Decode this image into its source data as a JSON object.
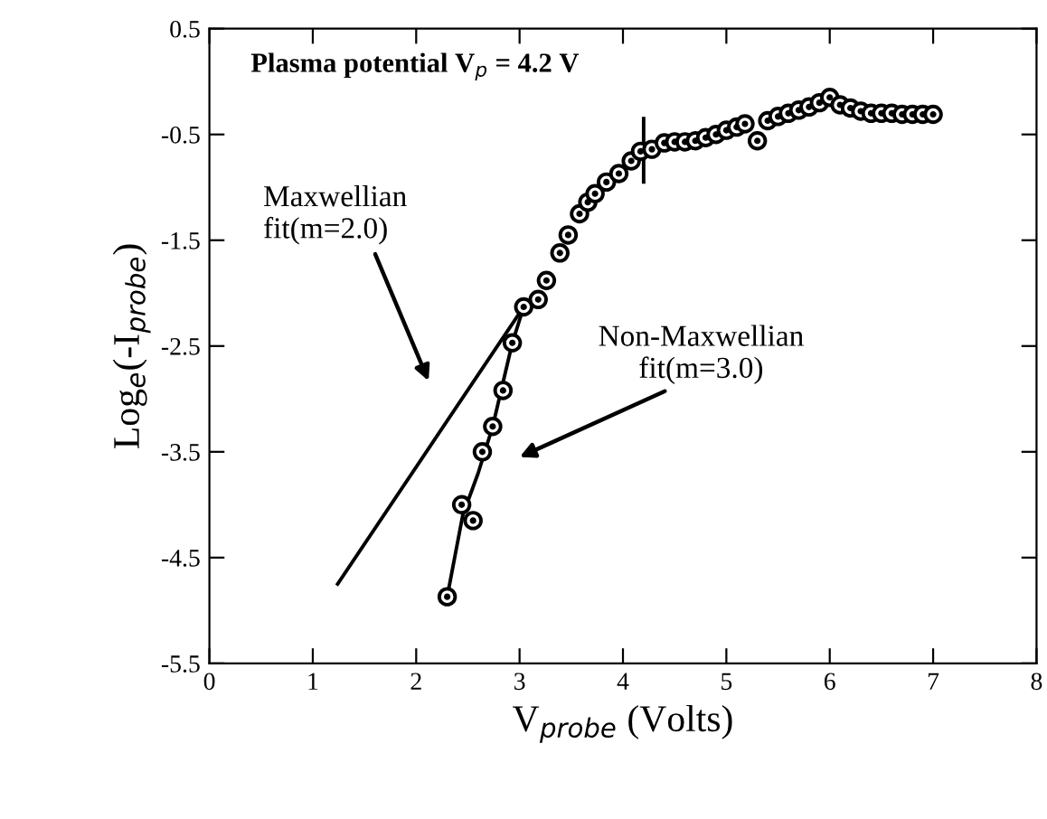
{
  "chart_data": {
    "type": "scatter",
    "xlabel": "V$_{probe}$ (Volts)",
    "ylabel": "Log$_{e}$(-I$_{probe}$)",
    "xlim": [
      0,
      8
    ],
    "ylim": [
      -5.5,
      0.5
    ],
    "xticks": [
      0,
      1,
      2,
      3,
      4,
      5,
      6,
      7,
      8
    ],
    "yticks": [
      -5.5,
      -4.5,
      -3.5,
      -2.5,
      -1.5,
      -0.5,
      0.5
    ],
    "grid": false,
    "series": [
      {
        "marker": "circle",
        "color": "#000000",
        "x": [
          2.3,
          2.44,
          2.55,
          2.64,
          2.74,
          2.84,
          2.93,
          3.04,
          3.18,
          3.26,
          3.39,
          3.47,
          3.58,
          3.66,
          3.73,
          3.84,
          3.96,
          4.08,
          4.17,
          4.28,
          4.4,
          4.5,
          4.6,
          4.7,
          4.8,
          4.9,
          5.0,
          5.1,
          5.18,
          5.3,
          5.4,
          5.5,
          5.6,
          5.7,
          5.8,
          5.9,
          6.0,
          6.1,
          6.2,
          6.3,
          6.4,
          6.5,
          6.6,
          6.7,
          6.8,
          6.9,
          7.0
        ],
        "values": [
          -4.87,
          -4.0,
          -4.15,
          -3.5,
          -3.26,
          -2.92,
          -2.47,
          -2.13,
          -2.06,
          -1.88,
          -1.62,
          -1.45,
          -1.25,
          -1.14,
          -1.06,
          -0.95,
          -0.87,
          -0.75,
          -0.66,
          -0.64,
          -0.58,
          -0.57,
          -0.57,
          -0.56,
          -0.53,
          -0.5,
          -0.46,
          -0.43,
          -0.4,
          -0.56,
          -0.37,
          -0.33,
          -0.3,
          -0.27,
          -0.24,
          -0.2,
          -0.15,
          -0.22,
          -0.25,
          -0.28,
          -0.3,
          -0.3,
          -0.3,
          -0.31,
          -0.31,
          -0.31,
          -0.31
        ]
      },
      {
        "type": "line",
        "color": "#000000",
        "x": [
          2.3,
          2.45,
          2.6,
          2.74,
          2.93,
          3.04
        ],
        "values": [
          -4.87,
          -4.1,
          -3.7,
          -3.26,
          -2.47,
          -2.13
        ]
      },
      {
        "type": "line",
        "color": "#000000",
        "x": [
          1.24,
          3.04
        ],
        "values": [
          -4.75,
          -2.13
        ]
      },
      {
        "type": "line",
        "color": "#000000",
        "x": [
          4.2,
          4.2
        ],
        "values": [
          -0.35,
          -0.95
        ]
      }
    ],
    "annotations": [
      "Plasma potential V$_{p}$ = 4.2 V",
      "Maxwellian\nfit(m=2.0)",
      "Non-Maxwellian\nfit(m=3.0)"
    ]
  }
}
